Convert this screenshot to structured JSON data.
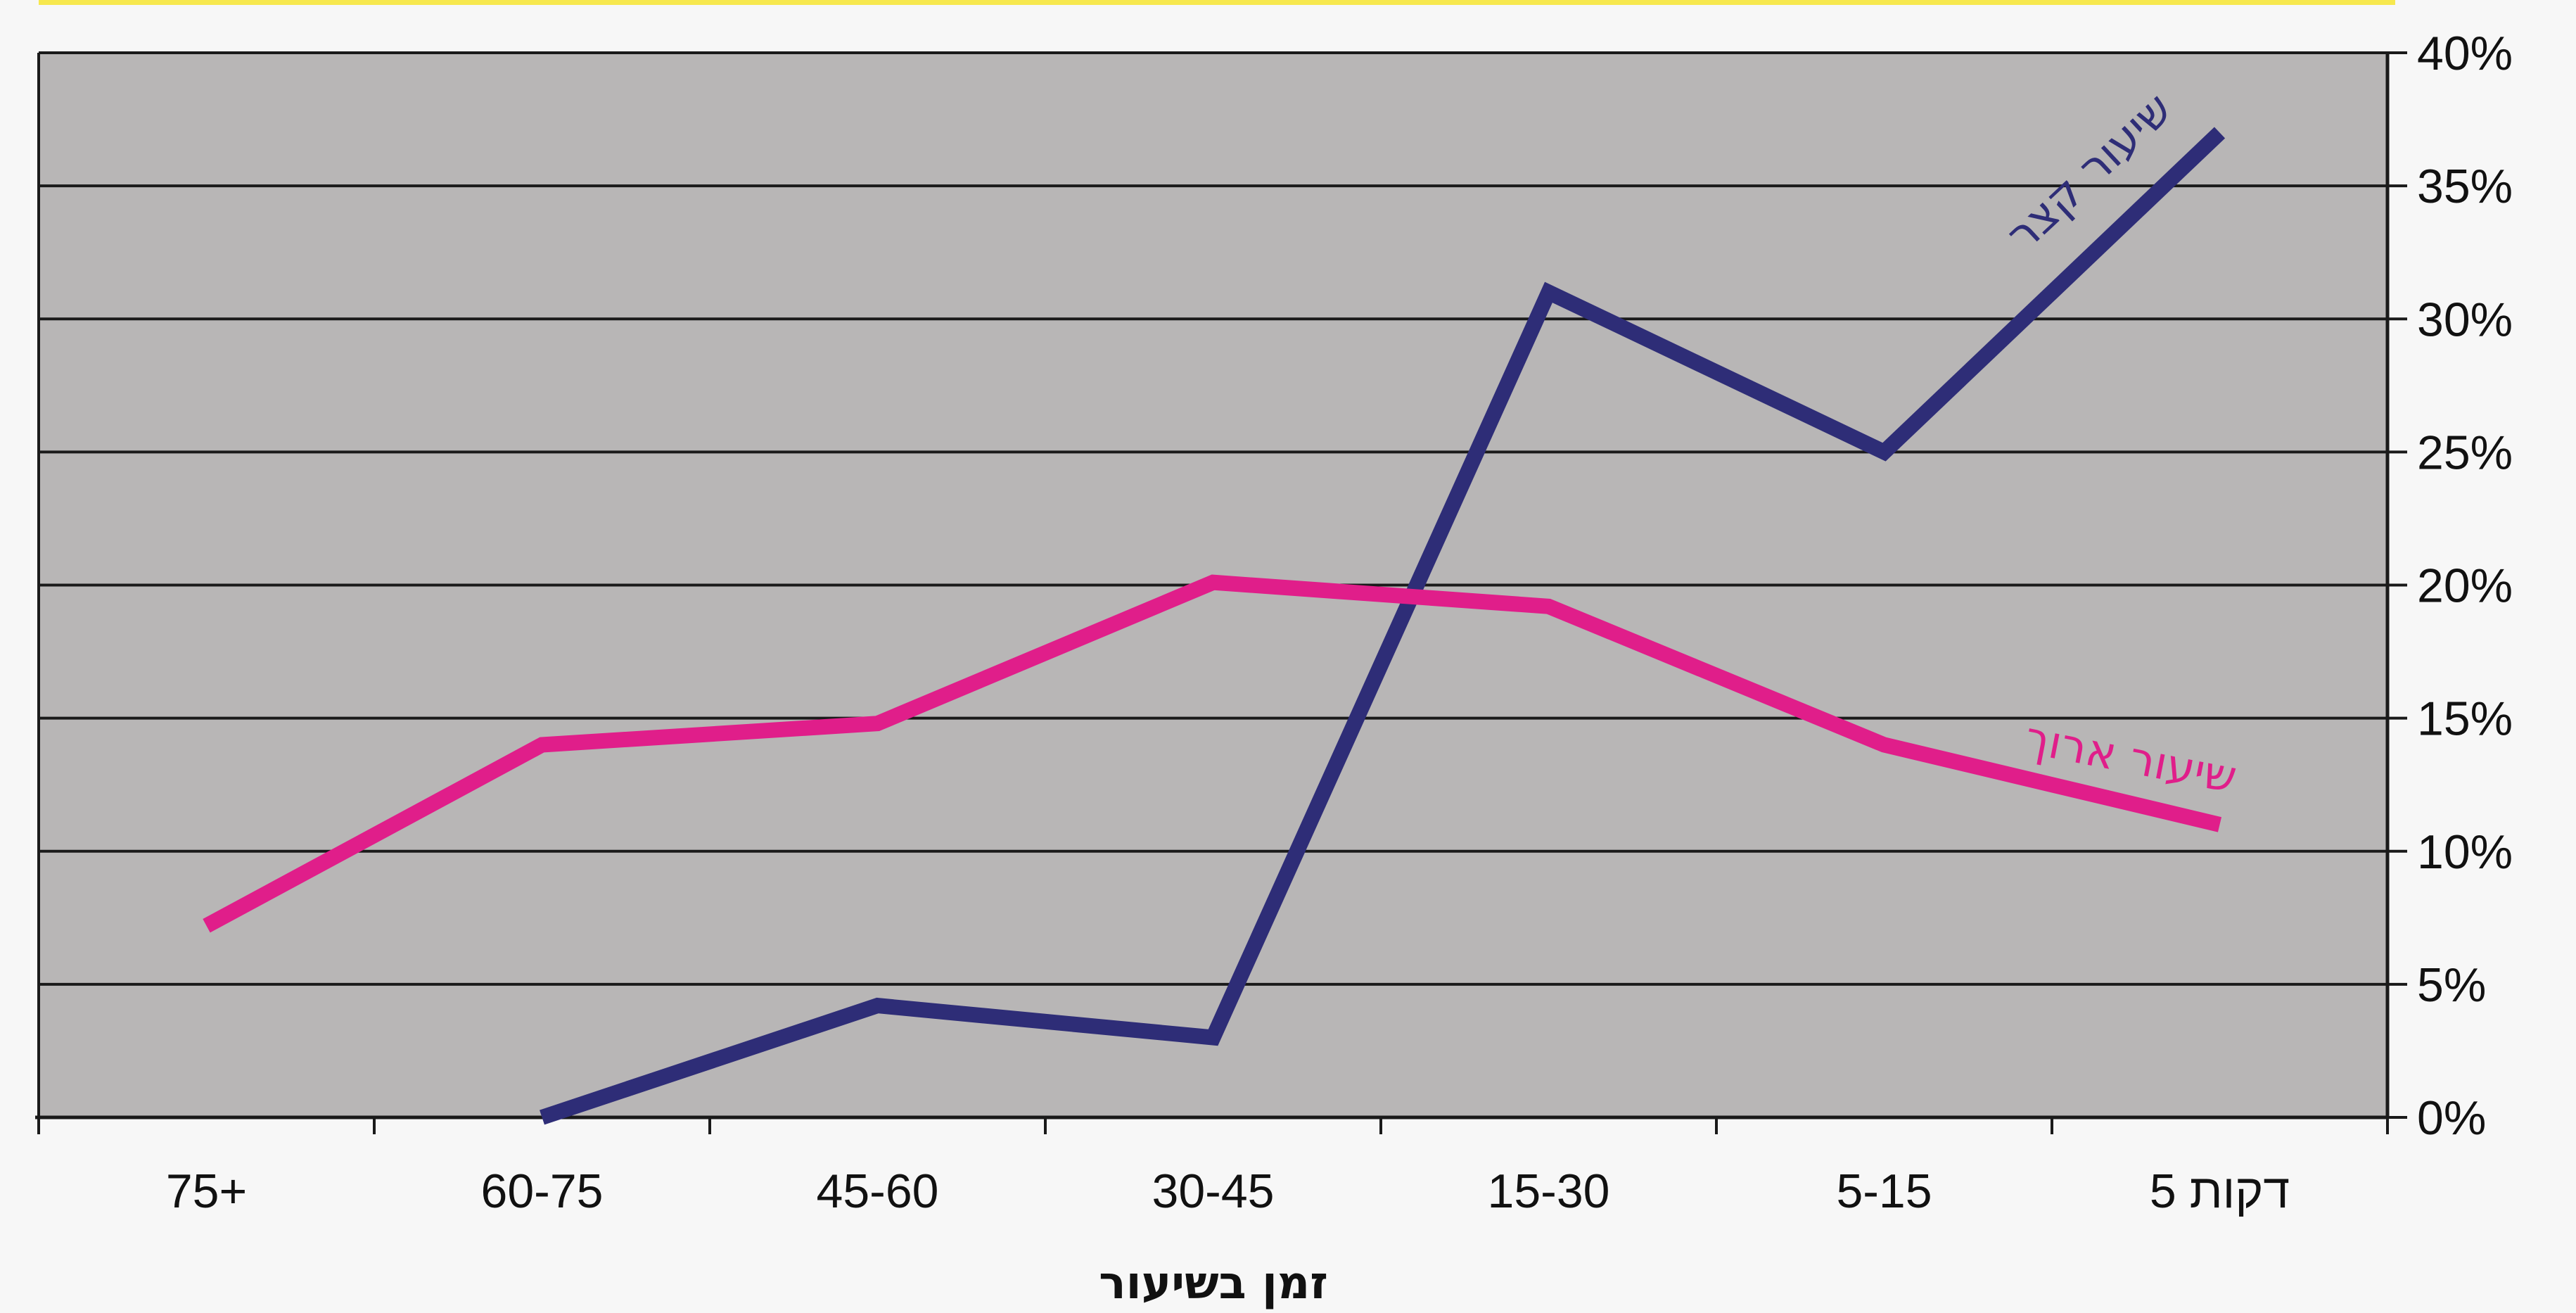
{
  "chart_data": {
    "type": "line",
    "title": "",
    "xlabel": "זמן בשיעור",
    "ylabel": "",
    "categories": [
      "דקות 5",
      "5-15",
      "15-30",
      "30-45",
      "45-60",
      "60-75",
      "75+"
    ],
    "x_axis_direction": "right-to-left",
    "y_axis_position": "right",
    "ylim": [
      0,
      40
    ],
    "y_ticks": [
      0,
      5,
      10,
      15,
      20,
      25,
      30,
      35,
      40
    ],
    "y_tick_format": "percent",
    "grid": true,
    "series": [
      {
        "name": "שיעור קצר",
        "color": "#2e2d77",
        "values": [
          37,
          25,
          31,
          3,
          4.2,
          0,
          null
        ]
      },
      {
        "name": "שיעור ארוך",
        "color": "#e01e8a",
        "values": [
          11,
          14,
          19.2,
          20.1,
          14.8,
          14,
          7.2
        ]
      }
    ]
  },
  "colors": {
    "top_banner": "#f7e84e",
    "plot_background": "#b8b6b6",
    "gridline": "#1a1a1a"
  }
}
